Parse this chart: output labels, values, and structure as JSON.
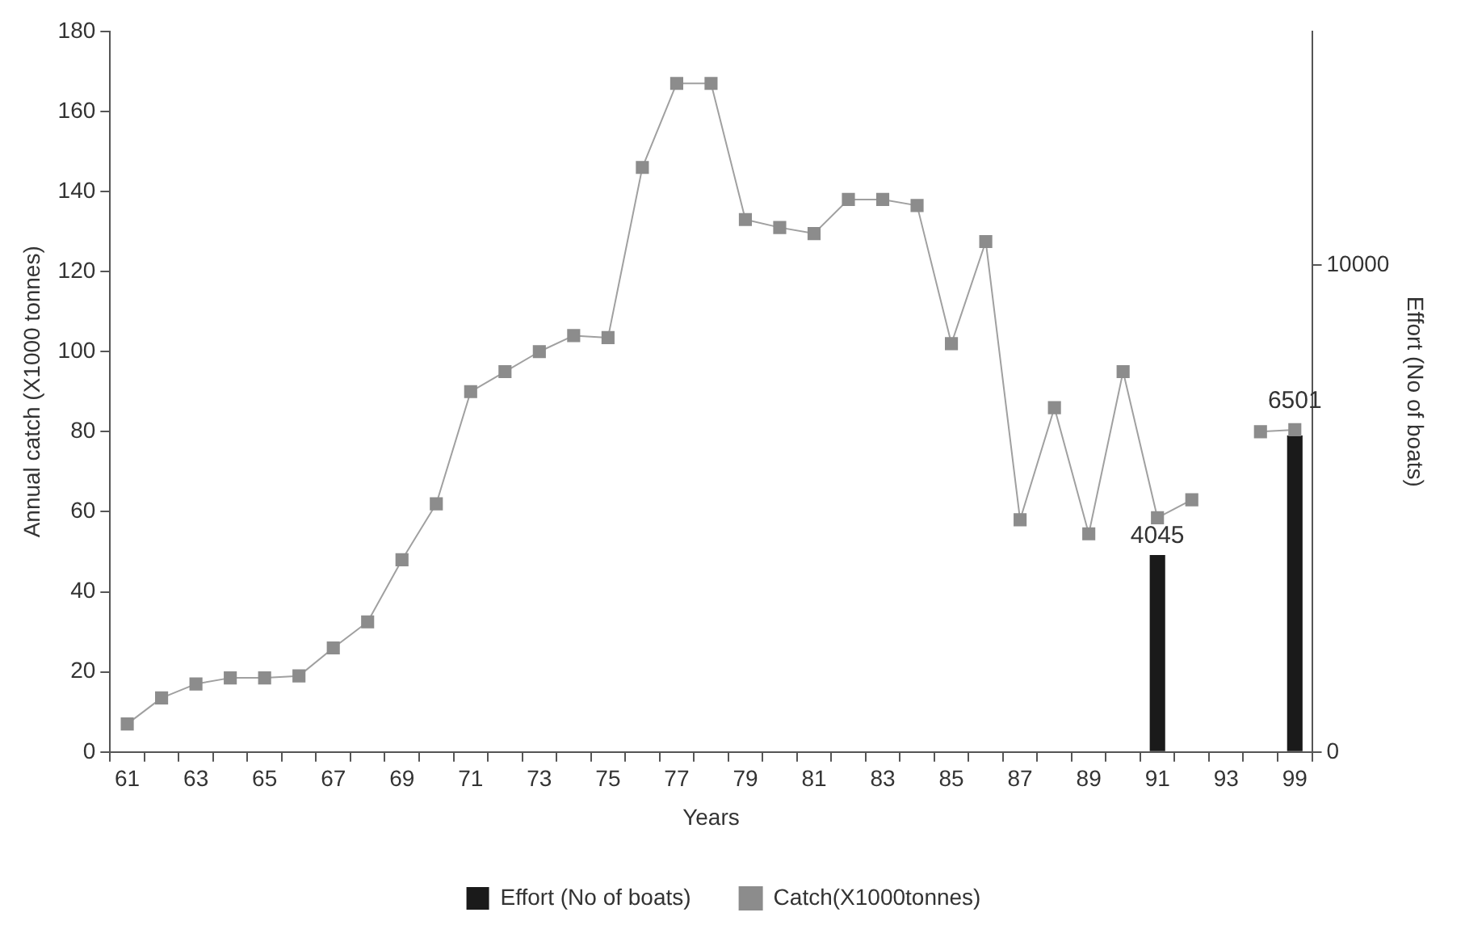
{
  "chart_data": {
    "type": "line",
    "xlabel": "Years",
    "ylabel": "Annual catch (X1000 tonnes)",
    "y2label": "Effort (No of boats)",
    "categories": [
      "61",
      null,
      "63",
      null,
      "65",
      null,
      "67",
      null,
      "69",
      null,
      "71",
      null,
      "73",
      null,
      "75",
      null,
      "77",
      null,
      "79",
      null,
      "81",
      null,
      "83",
      null,
      "85",
      null,
      "87",
      null,
      "89",
      null,
      "91",
      null,
      "93",
      null,
      "99"
    ],
    "series": [
      {
        "name": "Effort (No of boats)",
        "type": "bar",
        "axis": "y2",
        "color": "#1a1a1a",
        "values": [
          null,
          null,
          null,
          null,
          null,
          null,
          null,
          null,
          null,
          null,
          null,
          null,
          null,
          null,
          null,
          null,
          null,
          null,
          null,
          null,
          null,
          null,
          null,
          null,
          null,
          null,
          null,
          null,
          null,
          null,
          4045,
          null,
          null,
          null,
          6501
        ],
        "value_labels": [
          null,
          null,
          null,
          null,
          null,
          null,
          null,
          null,
          null,
          null,
          null,
          null,
          null,
          null,
          null,
          null,
          null,
          null,
          null,
          null,
          null,
          null,
          null,
          null,
          null,
          null,
          null,
          null,
          null,
          null,
          "4045",
          null,
          null,
          null,
          "6501"
        ]
      },
      {
        "name": "Catch(X1000tonnes)",
        "color": "#8c8c8c",
        "marker": "square",
        "values": [
          7,
          13.5,
          17,
          18.5,
          18.5,
          19,
          26,
          32.5,
          48,
          62,
          90,
          95,
          100,
          104,
          103.5,
          146,
          167,
          167,
          133,
          131,
          129.5,
          138,
          138,
          136.5,
          102,
          127.5,
          58,
          86,
          54.5,
          95,
          58.5,
          63,
          null,
          80,
          80.5
        ]
      }
    ],
    "ylim": [
      0,
      180
    ],
    "yticks": [
      0,
      20,
      40,
      60,
      80,
      100,
      120,
      140,
      160,
      180
    ],
    "y2lim": [
      0,
      14800
    ],
    "y2ticks": [
      0,
      10000
    ],
    "grid": false,
    "legend": "bottom"
  }
}
